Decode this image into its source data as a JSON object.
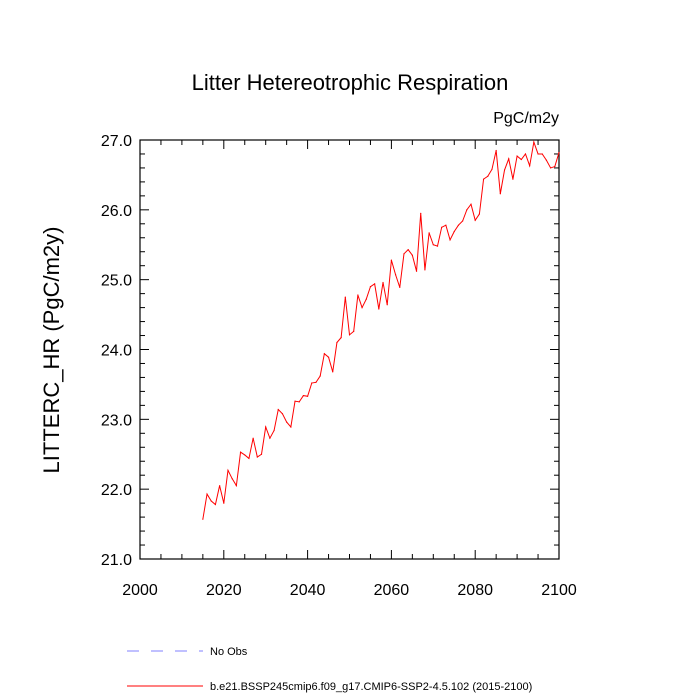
{
  "chart_data": {
    "type": "line",
    "title": "Litter Hetereotrophic Respiration",
    "units_label": "PgC/m2y",
    "xlabel": "",
    "ylabel": "LITTERC_HR  (PgC/m2y)",
    "xlim": [
      2000,
      2100
    ],
    "ylim": [
      21.0,
      27.0
    ],
    "x_ticks": [
      "2000",
      "2020",
      "2040",
      "2060",
      "2080",
      "2100"
    ],
    "y_ticks": [
      "21.0",
      "22.0",
      "23.0",
      "24.0",
      "25.0",
      "26.0",
      "27.0"
    ],
    "grid": false,
    "legend_position": "bottom",
    "legend": [
      {
        "label": "No Obs",
        "style": "dashed",
        "color": "#8080ff"
      },
      {
        "label": "b.e21.BSSP245cmip6.f09_g17.CMIP6-SSP2-4.5.102 (2015-2100)",
        "style": "solid",
        "color": "#ff0000"
      }
    ],
    "series": [
      {
        "color": "#ff0000",
        "x": [
          2015,
          2016,
          2017,
          2018,
          2019,
          2020,
          2021,
          2022,
          2023,
          2024,
          2025,
          2026,
          2027,
          2028,
          2029,
          2030,
          2031,
          2032,
          2033,
          2034,
          2035,
          2036,
          2037,
          2038,
          2039,
          2040,
          2041,
          2042,
          2043,
          2044,
          2045,
          2046,
          2047,
          2048,
          2049,
          2050,
          2051,
          2052,
          2053,
          2054,
          2055,
          2056,
          2057,
          2058,
          2059,
          2060,
          2061,
          2062,
          2063,
          2064,
          2065,
          2066,
          2067,
          2068,
          2069,
          2070,
          2071,
          2072,
          2073,
          2074,
          2075,
          2076,
          2077,
          2078,
          2079,
          2080,
          2081,
          2082,
          2083,
          2084,
          2085,
          2086,
          2087,
          2088,
          2089,
          2090,
          2091,
          2092,
          2093,
          2094,
          2095,
          2096,
          2097,
          2098,
          2099,
          2100
        ],
        "values": [
          21.57,
          21.93,
          21.83,
          21.78,
          22.05,
          21.8,
          22.27,
          22.15,
          22.05,
          22.53,
          22.49,
          22.44,
          22.73,
          22.46,
          22.5,
          22.89,
          22.73,
          22.84,
          23.14,
          23.08,
          22.96,
          22.89,
          23.26,
          23.25,
          23.34,
          23.33,
          23.52,
          23.53,
          23.62,
          23.94,
          23.89,
          23.68,
          24.1,
          24.17,
          24.75,
          24.21,
          24.26,
          24.78,
          24.6,
          24.72,
          24.9,
          24.94,
          24.58,
          24.96,
          24.64,
          25.28,
          25.07,
          24.89,
          25.37,
          25.43,
          25.35,
          25.12,
          25.95,
          25.14,
          25.67,
          25.5,
          25.48,
          25.75,
          25.78,
          25.57,
          25.69,
          25.78,
          25.84,
          26.0,
          26.08,
          25.85,
          25.94,
          26.44,
          26.48,
          26.58,
          26.85,
          26.23,
          26.57,
          26.73,
          26.44,
          26.77,
          26.72,
          26.8,
          26.63,
          26.97,
          26.8,
          26.8,
          26.71,
          26.6,
          26.62,
          26.82
        ]
      }
    ]
  }
}
